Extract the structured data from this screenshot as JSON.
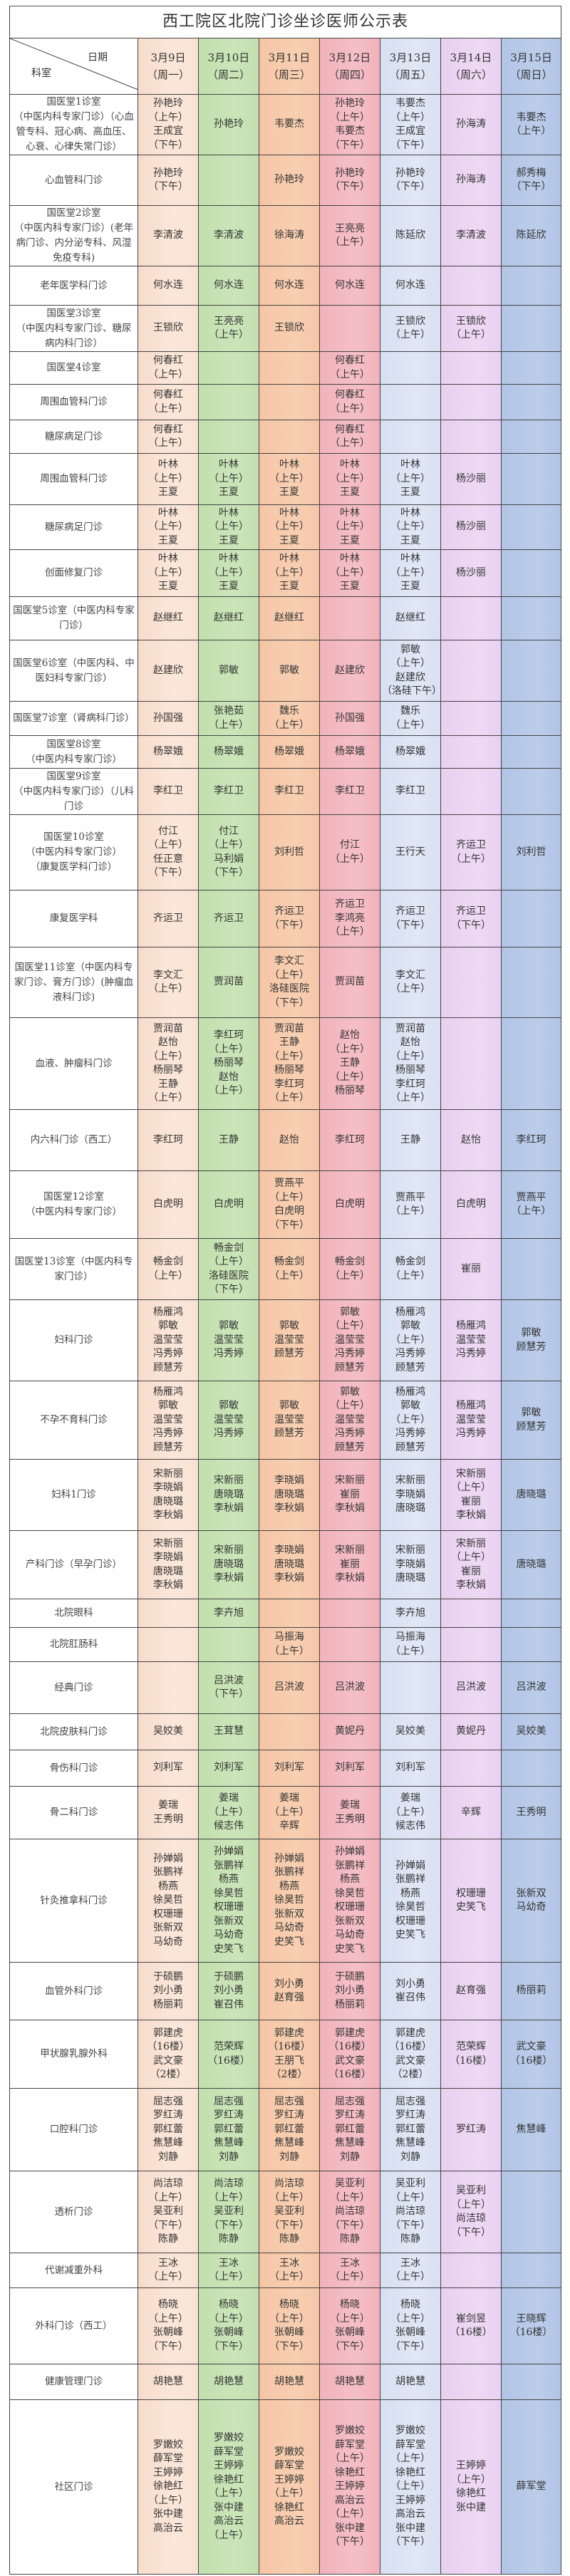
{
  "title": "西工院区北院门诊坐诊医师公示表",
  "corner": {
    "date_label": "日期",
    "dept_label": "科室"
  },
  "column_colors": [
    "#fbe3d3",
    "#c6e0b4",
    "#f8cbad",
    "#f4b6be",
    "#dae3f3",
    "#ecd3f2",
    "#b4c7e7"
  ],
  "days": [
    {
      "date": "3月9日",
      "weekday": "（周一）"
    },
    {
      "date": "3月10日",
      "weekday": "（周二）"
    },
    {
      "date": "3月11日",
      "weekday": "（周三）"
    },
    {
      "date": "3月12日",
      "weekday": "（周四）"
    },
    {
      "date": "3月13日",
      "weekday": "（周五）"
    },
    {
      "date": "3月14日",
      "weekday": "（周六）"
    },
    {
      "date": "3月15日",
      "weekday": "（周日）"
    }
  ],
  "rows": [
    {
      "dept": "国医堂1诊室\n（中医内科专家门诊）（心血管专科、冠心病、高血压、心衰、心律失常门诊）",
      "cells": [
        "孙艳玲\n（上午）\n王成宜\n（下午）",
        "孙艳玲",
        "韦要杰",
        "孙艳玲\n（上午）\n韦要杰\n（下午）",
        "韦要杰\n（上午）\n王成宜\n（下午）",
        "孙海涛",
        "韦要杰\n（上午）"
      ]
    },
    {
      "dept": "心血管科门诊",
      "cells": [
        "孙艳玲\n（下午）",
        "",
        "孙艳玲",
        "孙艳玲\n（下午）",
        "孙艳玲\n（下午）",
        "孙海涛",
        "郝秀梅\n（下午）"
      ]
    },
    {
      "dept": "国医堂2诊室\n（中医内科专家门诊）(老年病门诊、内分泌专科、风湿免疫专科)",
      "cells": [
        "李清波",
        "李清波",
        "徐海涛",
        "王亮亮\n（上午）",
        "陈延欣",
        "李清波",
        "陈延欣"
      ]
    },
    {
      "dept": "老年医学科门诊",
      "cells": [
        "何水连",
        "何水连",
        "何水连",
        "何水连",
        "何水连",
        "",
        ""
      ]
    },
    {
      "dept": "国医堂3诊室\n（中医内科专家门诊、糖尿病内科门诊）",
      "cells": [
        "王锁欣",
        "王亮亮\n（上午）",
        "王锁欣",
        "",
        "王锁欣\n（上午）",
        "王锁欣\n（上午）",
        ""
      ]
    },
    {
      "dept": "国医堂4诊室",
      "cells": [
        "何春红\n（上午）",
        "",
        "",
        "何春红\n（上午）",
        "",
        "",
        ""
      ]
    },
    {
      "dept": "周围血管科门诊",
      "cells": [
        "何春红\n（上午）",
        "",
        "",
        "何春红\n（上午）",
        "",
        "",
        ""
      ]
    },
    {
      "dept": "糖尿病足门诊",
      "cells": [
        "何春红\n（上午）",
        "",
        "",
        "何春红\n（上午）",
        "",
        "",
        ""
      ]
    },
    {
      "dept": "周围血管科门诊",
      "cells": [
        "叶林\n（上午）\n王夏",
        "叶林\n（上午）\n王夏",
        "叶林\n（上午）\n王夏",
        "叶林\n（上午）\n王夏",
        "叶林\n（上午）\n王夏",
        "杨沙丽",
        ""
      ]
    },
    {
      "dept": "糖尿病足门诊",
      "cells": [
        "叶林\n（上午）\n王夏",
        "叶林\n（上午）\n王夏",
        "叶林\n（上午）\n王夏",
        "叶林\n（上午）\n王夏",
        "叶林\n（上午）\n王夏",
        "杨沙丽",
        ""
      ]
    },
    {
      "dept": "创面修复门诊",
      "cells": [
        "叶林\n（上午）\n王夏",
        "叶林\n（上午）\n王夏",
        "叶林\n（上午）\n王夏",
        "叶林\n（上午）\n王夏",
        "叶林\n（上午）\n王夏",
        "杨沙丽",
        ""
      ]
    },
    {
      "dept": "国医堂5诊室（中医内科专家门诊）",
      "cells": [
        "赵继红",
        "赵继红",
        "赵继红",
        "",
        "赵继红",
        "",
        ""
      ]
    },
    {
      "dept": "国医堂6诊室（中医内科、中医妇科专家门诊）",
      "cells": [
        "赵建欣",
        "郭敏",
        "郭敏",
        "赵建欣",
        "郭敏\n（上午）\n赵建欣\n（洛硅下午）",
        "",
        ""
      ]
    },
    {
      "dept": "国医堂7诊室（肾病科门诊）",
      "cells": [
        "孙国强",
        "张艳茹\n（上午）",
        "魏乐\n（上午）",
        "孙国强",
        "魏乐\n（上午）",
        "",
        ""
      ]
    },
    {
      "dept": "国医堂8诊室\n（中医内科专家门诊）",
      "cells": [
        "杨翠娥",
        "杨翠娥",
        "杨翠娥",
        "杨翠娥",
        "杨翠娥",
        "",
        ""
      ]
    },
    {
      "dept": "国医堂9诊室\n（中医内科专家门诊）（儿科门诊",
      "cells": [
        "李红卫",
        "李红卫",
        "李红卫",
        "李红卫",
        "李红卫",
        "",
        ""
      ]
    },
    {
      "dept": "国医堂10诊室\n（中医内科专家门诊）\n（康复医学科门诊）",
      "cells": [
        "付江\n（上午）\n任正意\n（下午）",
        "付江\n（上午）\n马利娟\n（下午）",
        "刘利哲",
        "付江\n（上午）",
        "王行天",
        "齐运卫\n（上午）",
        "刘利哲"
      ]
    },
    {
      "dept": "康复医学科",
      "cells": [
        "齐运卫",
        "齐运卫",
        "齐运卫\n（下午）",
        "齐运卫\n李鸿亮\n（上午）",
        "齐运卫\n（下午）",
        "齐运卫\n（下午）",
        ""
      ]
    },
    {
      "dept": "国医堂11诊室（中医内科专家门诊、膏方门诊）(肿瘤血液科门诊)",
      "cells": [
        "李文汇\n（上午）",
        "贾润苗",
        "李文汇\n（上午）\n洛硅医院\n（下午）",
        "贾润苗",
        "李文汇\n（上午）",
        "",
        ""
      ]
    },
    {
      "dept": "血液、肿瘤科门诊",
      "cells": [
        "贾润苗\n赵怡\n（上午）\n杨丽琴\n王静\n（上午）",
        "李红珂\n（上午）\n杨丽琴\n赵怡\n（上午）",
        "贾润苗\n王静\n（上午）\n杨丽琴\n李红珂\n（上午）",
        "赵怡\n（上午）\n王静\n（上午）\n杨丽琴",
        "贾润苗\n赵怡\n（上午）\n杨丽琴\n李红珂\n（上午）",
        "",
        ""
      ]
    },
    {
      "dept": "内六科门诊（西工）",
      "cells": [
        "李红珂",
        "王静",
        "赵怡",
        "李红珂",
        "王静",
        "赵怡",
        "李红珂"
      ]
    },
    {
      "dept": "国医堂12诊室\n（中医内科专家门诊）",
      "cells": [
        "白虎明",
        "白虎明",
        "贾燕平\n（上午）\n白虎明\n（下午）",
        "白虎明",
        "贾燕平\n（上午）",
        "白虎明",
        "贾燕平\n（上午）"
      ]
    },
    {
      "dept": "国医堂13诊室（中医内科专家门诊）",
      "cells": [
        "畅金剑\n（上午）",
        "畅金剑\n（上午）\n洛硅医院\n（下午）",
        "畅金剑\n（上午）",
        "畅金剑\n（上午）",
        "畅金剑\n（上午）",
        "崔丽",
        ""
      ]
    },
    {
      "dept": "妇科门诊",
      "cells": [
        "杨雁鸿\n郭敏\n温莹莹\n冯秀婷\n顾慧芳",
        "郭敏\n温莹莹\n冯秀婷",
        "郭敏\n温莹莹\n顾慧芳",
        "郭敏\n（上午）\n温莹莹\n冯秀婷\n顾慧芳",
        "杨雁鸿\n郭敏\n（上午）\n冯秀婷\n顾慧芳",
        "杨雁鸿\n温莹莹\n冯秀婷",
        "郭敏\n顾慧芳"
      ]
    },
    {
      "dept": "不孕不育科门诊",
      "cells": [
        "杨雁鸿\n郭敏\n温莹莹\n冯秀婷\n顾慧芳",
        "郭敏\n温莹莹\n冯秀婷",
        "郭敏\n温莹莹\n顾慧芳",
        "郭敏\n（上午）\n温莹莹\n冯秀婷\n顾慧芳",
        "杨雁鸿\n郭敏\n（上午）\n冯秀婷\n顾慧芳",
        "杨雁鸿\n温莹莹\n冯秀婷",
        "郭敏\n顾慧芳"
      ]
    },
    {
      "dept": "妇科1门诊",
      "cells": [
        "宋新丽\n李晓娟\n唐晓璐\n李秋娟",
        "宋新丽\n唐晓璐\n李秋娟",
        "李晓娟\n唐晓璐\n李秋娟",
        "宋新丽\n崔丽\n李秋娟",
        "宋新丽\n李晓娟\n唐晓璐",
        "宋新丽\n（上午）\n崔丽\n李秋娟",
        "唐晓璐"
      ]
    },
    {
      "dept": "产科门诊（早孕门诊）",
      "cells": [
        "宋新丽\n李晓娟\n唐晓璐\n李秋娟",
        "宋新丽\n唐晓璐\n李秋娟",
        "李晓娟\n唐晓璐\n李秋娟",
        "宋新丽\n崔丽\n李秋娟",
        "宋新丽\n李晓娟\n唐晓璐",
        "宋新丽\n（上午）\n崔丽\n李秋娟",
        "唐晓璐"
      ]
    },
    {
      "dept": "北院眼科",
      "cells": [
        "",
        "李卉旭",
        "",
        "",
        "李卉旭",
        "",
        ""
      ]
    },
    {
      "dept": "北院肛肠科",
      "cells": [
        "",
        "",
        "马振海\n（上午）",
        "",
        "马振海\n（上午）",
        "",
        ""
      ]
    },
    {
      "dept": "经典门诊",
      "cells": [
        "",
        "吕洪波\n（下午）",
        "吕洪波",
        "吕洪波",
        "",
        "吕洪波",
        "吕洪波"
      ]
    },
    {
      "dept": "北院皮肤科门诊",
      "cells": [
        "吴姣美",
        "王茸慧",
        "",
        "黄妮丹",
        "吴姣美",
        "黄妮丹",
        "吴姣美"
      ]
    },
    {
      "dept": "骨伤科门诊",
      "cells": [
        "刘利军",
        "刘利军",
        "刘利军",
        "刘利军",
        "刘利军",
        "",
        ""
      ]
    },
    {
      "dept": "骨二科门诊",
      "cells": [
        "姜瑞\n王秀明",
        "姜瑞\n（上午）\n候志伟",
        "姜瑞\n（上午）\n辛辉",
        "姜瑞\n王秀明",
        "姜瑞\n（上午）\n候志伟",
        "辛辉",
        "王秀明"
      ]
    },
    {
      "dept": "针灸推拿科门诊",
      "cells": [
        "孙婵娟\n张鹏祥\n杨燕\n徐昊哲\n权珊珊\n张新双\n马幼奇",
        "孙婵娟\n张鹏祥\n杨燕\n徐昊哲\n权珊珊\n张新双\n马幼奇\n史笑飞",
        "孙婵娟\n张鹏祥\n杨燕\n徐昊哲\n张新双\n马幼奇\n史笑飞",
        "孙婵娟\n张鹏祥\n杨燕\n徐昊哲\n权珊珊\n张新双\n马幼奇\n史笑飞",
        "孙婵娟\n张鹏祥\n杨燕\n徐昊哲\n权珊珊\n史笑飞",
        "权珊珊\n史笑飞",
        "张新双\n马幼奇"
      ]
    },
    {
      "dept": "血管外科门诊",
      "cells": [
        "于硕鹏\n刘小勇\n杨丽莉",
        "于硕鹏\n刘小勇\n崔召伟",
        "刘小勇\n赵育强",
        "于硕鹏\n刘小勇\n杨丽莉",
        "刘小勇\n崔召伟",
        "赵育强",
        "杨丽莉"
      ]
    },
    {
      "dept": "甲状腺乳腺外科",
      "cells": [
        "郭建虎\n（16楼）\n武文豪\n（2楼）",
        "范荣辉\n（16楼）",
        "郭建虎\n（16楼）\n王朋飞\n（2楼）",
        "郭建虎\n（16楼）\n武文豪\n（16楼）",
        "郭建虎\n（16楼）\n武文豪\n（2楼）",
        "范荣辉\n（16楼）",
        "武文豪\n（16楼）"
      ]
    },
    {
      "dept": "口腔科门诊",
      "cells": [
        "屈志强\n罗红涛\n郭红蕾\n焦慧峰\n刘静",
        "屈志强\n罗红涛\n郭红蕾\n焦慧峰\n刘静",
        "屈志强\n罗红涛\n郭红蕾\n焦慧峰\n刘静",
        "屈志强\n罗红涛\n郭红蕾\n焦慧峰\n刘静",
        "屈志强\n罗红涛\n郭红蕾\n焦慧峰\n刘静",
        "罗红涛",
        "焦慧峰"
      ]
    },
    {
      "dept": "透析门诊",
      "cells": [
        "尚洁琼\n（上午）\n吴亚利\n（下午）\n陈静",
        "尚洁琼\n（上午）\n吴亚利\n（下午）\n陈静",
        "尚洁琼\n（上午）\n吴亚利\n（下午）\n陈静",
        "吴亚利\n（上午）\n尚洁琼\n（下午）\n陈静",
        "吴亚利\n（上午）\n尚洁琼\n（下午）\n陈静",
        "吴亚利\n（上午）\n尚洁琼\n（下午）",
        ""
      ]
    },
    {
      "dept": "代谢减重外科",
      "cells": [
        "王冰\n（上午）",
        "王冰\n（上午）",
        "王冰\n（上午）",
        "王冰\n（上午）",
        "王冰\n（上午）",
        "",
        ""
      ]
    },
    {
      "dept": "外科门诊（西工）",
      "cells": [
        "杨晓\n（上午）\n张朝峰\n（下午）",
        "杨晓\n（上午）\n张朝峰\n（下午）",
        "杨晓\n（上午）\n张朝峰\n（下午）",
        "杨晓\n（上午）\n张朝峰\n（下午）",
        "杨晓\n（上午）\n张朝峰\n（下午）",
        "崔剑昱\n（16楼）",
        "王晓辉\n（16楼）"
      ]
    },
    {
      "dept": "健康管理门诊",
      "cells": [
        "胡艳慧",
        "胡艳慧",
        "胡艳慧",
        "胡艳慧",
        "胡艳慧",
        "",
        ""
      ]
    },
    {
      "dept": "社区门诊",
      "cells": [
        "罗嫩姣\n薛军堂\n王婷婷\n徐艳红\n（上午）\n张中建\n高治云",
        "罗嫩姣\n薛军堂\n王婷婷\n徐艳红\n（上午）\n张中建\n高治云\n（上午）",
        "罗嫩姣\n薛军堂\n王婷婷\n（上午）\n徐艳红\n高治云",
        "罗嫩姣\n薛军堂\n（上午）\n徐艳红\n王婷婷\n高治云\n（上午）\n张中建\n（下午）",
        "罗嫩姣\n薛军堂\n（上午）\n徐艳红\n（上午）\n王婷婷\n高治云\n张中建\n（下午）",
        "王婷婷\n（上午）\n徐艳红\n张中建",
        "薛军堂"
      ]
    }
  ]
}
